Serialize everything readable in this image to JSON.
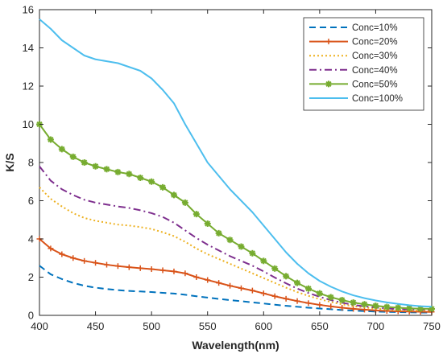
{
  "chart_data": {
    "type": "line",
    "title": "",
    "xlabel": "Wavelength(nm)",
    "ylabel": "K/S",
    "xlim": [
      400,
      750
    ],
    "ylim": [
      0,
      16
    ],
    "xticks": [
      400,
      450,
      500,
      550,
      600,
      650,
      700,
      750
    ],
    "yticks": [
      0,
      2,
      4,
      6,
      8,
      10,
      12,
      14,
      16
    ],
    "grid": false,
    "legend_position": "top-right",
    "x": [
      400,
      410,
      420,
      430,
      440,
      450,
      460,
      470,
      480,
      490,
      500,
      510,
      520,
      530,
      540,
      550,
      560,
      570,
      580,
      590,
      600,
      610,
      620,
      630,
      640,
      650,
      660,
      670,
      680,
      690,
      700,
      710,
      720,
      730,
      740,
      750
    ],
    "series": [
      {
        "name": "Conc=10%",
        "color": "#0072BD",
        "dash": "dashed",
        "marker": "none",
        "values": [
          2.6,
          2.15,
          1.9,
          1.7,
          1.55,
          1.45,
          1.38,
          1.32,
          1.28,
          1.25,
          1.22,
          1.18,
          1.14,
          1.08,
          1.0,
          0.93,
          0.86,
          0.8,
          0.74,
          0.68,
          0.62,
          0.56,
          0.5,
          0.45,
          0.4,
          0.36,
          0.32,
          0.28,
          0.25,
          0.22,
          0.2,
          0.18,
          0.17,
          0.16,
          0.15,
          0.15
        ]
      },
      {
        "name": "Conc=20%",
        "color": "#D95319",
        "dash": "solid",
        "marker": "plus",
        "values": [
          4.0,
          3.5,
          3.2,
          3.0,
          2.85,
          2.75,
          2.65,
          2.58,
          2.52,
          2.47,
          2.42,
          2.36,
          2.3,
          2.2,
          2.0,
          1.85,
          1.7,
          1.55,
          1.42,
          1.3,
          1.15,
          1.0,
          0.87,
          0.75,
          0.64,
          0.55,
          0.47,
          0.4,
          0.34,
          0.3,
          0.26,
          0.23,
          0.21,
          0.2,
          0.19,
          0.18
        ]
      },
      {
        "name": "Conc=30%",
        "color": "#EDB120",
        "dash": "dotted",
        "marker": "none",
        "values": [
          6.7,
          6.1,
          5.7,
          5.35,
          5.1,
          4.95,
          4.85,
          4.75,
          4.7,
          4.62,
          4.52,
          4.35,
          4.15,
          3.85,
          3.5,
          3.2,
          2.95,
          2.7,
          2.45,
          2.2,
          1.95,
          1.7,
          1.45,
          1.22,
          1.02,
          0.85,
          0.7,
          0.58,
          0.48,
          0.41,
          0.35,
          0.31,
          0.28,
          0.26,
          0.25,
          0.25
        ]
      },
      {
        "name": "Conc=40%",
        "color": "#7E2F8E",
        "dash": "dashdot",
        "marker": "none",
        "values": [
          7.8,
          7.05,
          6.6,
          6.3,
          6.05,
          5.9,
          5.8,
          5.7,
          5.62,
          5.5,
          5.35,
          5.15,
          4.85,
          4.45,
          4.05,
          3.7,
          3.4,
          3.1,
          2.85,
          2.6,
          2.3,
          1.98,
          1.68,
          1.4,
          1.17,
          0.97,
          0.8,
          0.66,
          0.55,
          0.47,
          0.41,
          0.36,
          0.33,
          0.31,
          0.3,
          0.3
        ]
      },
      {
        "name": "Conc=50%",
        "color": "#77AC30",
        "dash": "solid",
        "marker": "asterisk",
        "values": [
          10.0,
          9.2,
          8.7,
          8.3,
          8.0,
          7.8,
          7.65,
          7.5,
          7.4,
          7.2,
          7.0,
          6.7,
          6.3,
          5.9,
          5.3,
          4.8,
          4.3,
          3.95,
          3.6,
          3.25,
          2.85,
          2.45,
          2.05,
          1.7,
          1.4,
          1.15,
          0.95,
          0.8,
          0.67,
          0.58,
          0.5,
          0.44,
          0.4,
          0.37,
          0.35,
          0.34
        ]
      },
      {
        "name": "Conc=100%",
        "color": "#4DBEEE",
        "dash": "solid",
        "marker": "none",
        "values": [
          15.5,
          15.0,
          14.4,
          14.0,
          13.6,
          13.4,
          13.3,
          13.2,
          13.0,
          12.8,
          12.4,
          11.8,
          11.1,
          10.0,
          9.0,
          8.0,
          7.3,
          6.6,
          6.0,
          5.4,
          4.7,
          4.0,
          3.3,
          2.7,
          2.2,
          1.8,
          1.5,
          1.25,
          1.05,
          0.9,
          0.78,
          0.68,
          0.6,
          0.53,
          0.48,
          0.45
        ]
      }
    ]
  }
}
